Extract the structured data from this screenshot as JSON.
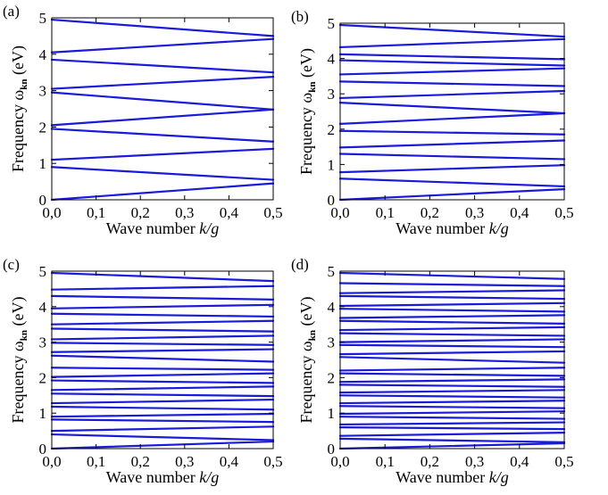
{
  "chart_data": [
    {
      "type": "line",
      "panel_label": "(a)",
      "xlabel_prefix": "Wave number ",
      "xlabel_italic": "k/g",
      "ylabel_prefix": "Frequency ",
      "ylabel_symbol": "ω",
      "ylabel_subscript": "kn",
      "ylabel_suffix": " (eV)",
      "xlim": [
        0,
        0.5
      ],
      "ylim": [
        0,
        5
      ],
      "x_ticks": [
        "0,0",
        "0,1",
        "0,2",
        "0,3",
        "0,4",
        "0,5"
      ],
      "y_ticks": [
        "0",
        "1",
        "2",
        "3",
        "4",
        "5"
      ],
      "line_color": "#1a1adc",
      "bands": [
        [
          0.0,
          0.45
        ],
        [
          0.9,
          0.55
        ],
        [
          1.1,
          1.4
        ],
        [
          1.95,
          1.6
        ],
        [
          2.05,
          2.48
        ],
        [
          2.95,
          2.48
        ],
        [
          3.05,
          3.38
        ],
        [
          3.85,
          3.5
        ],
        [
          4.05,
          4.42
        ],
        [
          4.95,
          4.5
        ]
      ]
    },
    {
      "type": "line",
      "panel_label": "(b)",
      "xlabel_prefix": "Wave number ",
      "xlabel_italic": "k/g",
      "ylabel_prefix": "Frequency ",
      "ylabel_symbol": "ω",
      "ylabel_subscript": "kn",
      "ylabel_suffix": " (eV)",
      "xlim": [
        0,
        0.5
      ],
      "ylim": [
        0,
        5
      ],
      "x_ticks": [
        "0,0",
        "0,1",
        "0,2",
        "0,3",
        "0,4",
        "0,5"
      ],
      "y_ticks": [
        "0",
        "1",
        "2",
        "3",
        "4",
        "5"
      ],
      "line_color": "#1a1adc",
      "bands": [
        [
          0.0,
          0.3
        ],
        [
          0.6,
          0.38
        ],
        [
          0.78,
          0.98
        ],
        [
          1.3,
          1.15
        ],
        [
          1.48,
          1.68
        ],
        [
          1.95,
          1.85
        ],
        [
          2.15,
          2.45
        ],
        [
          2.75,
          2.45
        ],
        [
          2.88,
          3.08
        ],
        [
          3.35,
          3.22
        ],
        [
          3.55,
          3.72
        ],
        [
          3.95,
          3.8
        ],
        [
          4.12,
          3.98
        ],
        [
          4.32,
          4.55
        ],
        [
          4.95,
          4.62
        ]
      ]
    },
    {
      "type": "line",
      "panel_label": "(c)",
      "xlabel_prefix": "Wave number ",
      "xlabel_italic": "k/g",
      "ylabel_prefix": "Frequency ",
      "ylabel_symbol": "ω",
      "ylabel_subscript": "kn",
      "ylabel_suffix": " (eV)",
      "xlim": [
        0,
        0.5
      ],
      "ylim": [
        0,
        5
      ],
      "x_ticks": [
        "0,0",
        "0,1",
        "0,2",
        "0,3",
        "0,4",
        "0,5"
      ],
      "y_ticks": [
        "0",
        "1",
        "2",
        "3",
        "4",
        "5"
      ],
      "line_color": "#1a1adc",
      "bands": [
        [
          0.0,
          0.2
        ],
        [
          0.4,
          0.24
        ],
        [
          0.5,
          0.62
        ],
        [
          0.82,
          0.75
        ],
        [
          0.9,
          0.98
        ],
        [
          1.18,
          1.1
        ],
        [
          1.28,
          1.38
        ],
        [
          1.55,
          1.48
        ],
        [
          1.65,
          1.75
        ],
        [
          1.92,
          1.85
        ],
        [
          2.02,
          2.12
        ],
        [
          2.28,
          2.22
        ],
        [
          2.62,
          2.45
        ],
        [
          2.72,
          2.8
        ],
        [
          2.98,
          2.92
        ],
        [
          3.08,
          3.18
        ],
        [
          3.38,
          3.3
        ],
        [
          3.5,
          3.6
        ],
        [
          3.8,
          3.72
        ],
        [
          3.95,
          4.05
        ],
        [
          4.3,
          4.2
        ],
        [
          4.48,
          4.58
        ],
        [
          4.95,
          4.72
        ]
      ]
    },
    {
      "type": "line",
      "panel_label": "(d)",
      "xlabel_prefix": "Wave number ",
      "xlabel_italic": "k/g",
      "ylabel_prefix": "Frequency ",
      "ylabel_symbol": "ω",
      "ylabel_subscript": "kn",
      "ylabel_suffix": " (eV)",
      "xlim": [
        0,
        0.5
      ],
      "ylim": [
        0,
        5
      ],
      "x_ticks": [
        "0,0",
        "0,1",
        "0,2",
        "0,3",
        "0,4",
        "0,5"
      ],
      "y_ticks": [
        "0",
        "1",
        "2",
        "3",
        "4",
        "5"
      ],
      "line_color": "#1a1adc",
      "bands": [
        [
          0.0,
          0.15
        ],
        [
          0.28,
          0.18
        ],
        [
          0.36,
          0.45
        ],
        [
          0.6,
          0.55
        ],
        [
          0.68,
          0.74
        ],
        [
          0.9,
          0.84
        ],
        [
          0.98,
          1.05
        ],
        [
          1.2,
          1.14
        ],
        [
          1.28,
          1.35
        ],
        [
          1.5,
          1.44
        ],
        [
          1.58,
          1.65
        ],
        [
          1.8,
          1.74
        ],
        [
          1.88,
          1.95
        ],
        [
          2.12,
          2.05
        ],
        [
          2.2,
          2.28
        ],
        [
          2.58,
          2.42
        ],
        [
          2.66,
          2.74
        ],
        [
          2.92,
          2.86
        ],
        [
          3.0,
          3.08
        ],
        [
          3.25,
          3.18
        ],
        [
          3.34,
          3.42
        ],
        [
          3.6,
          3.52
        ],
        [
          3.68,
          3.76
        ],
        [
          3.94,
          3.86
        ],
        [
          4.02,
          4.1
        ],
        [
          4.3,
          4.22
        ],
        [
          4.38,
          4.46
        ],
        [
          4.66,
          4.58
        ],
        [
          4.95,
          4.78
        ]
      ]
    }
  ]
}
